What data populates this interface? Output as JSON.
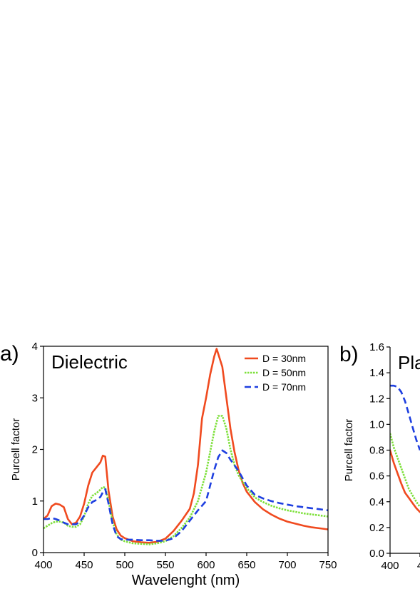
{
  "chart_data": [
    {
      "panel": "a)",
      "type": "line",
      "title": "Dielectric",
      "xlabel": "Wavelenght (nm)",
      "ylabel": "Purcell factor",
      "xlim": [
        400,
        750
      ],
      "ylim": [
        0,
        4
      ],
      "xticks": [
        "400",
        "450",
        "500",
        "550",
        "600",
        "650",
        "700",
        "750"
      ],
      "yticks": [
        "0",
        "1",
        "2",
        "3",
        "4"
      ],
      "legend_position": "top-right",
      "series": [
        {
          "name": "D = 30nm",
          "color": "#f04a1f",
          "dash": "solid",
          "x": [
            400,
            405,
            410,
            415,
            420,
            425,
            430,
            435,
            440,
            445,
            450,
            455,
            460,
            465,
            470,
            473,
            476,
            480,
            485,
            490,
            495,
            500,
            510,
            520,
            530,
            540,
            550,
            560,
            570,
            580,
            585,
            590,
            595,
            600,
            605,
            610,
            613,
            615,
            620,
            625,
            630,
            635,
            640,
            645,
            650,
            660,
            670,
            680,
            690,
            700,
            710,
            720,
            730,
            740,
            750
          ],
          "y": [
            0.65,
            0.72,
            0.9,
            0.95,
            0.93,
            0.88,
            0.65,
            0.55,
            0.58,
            0.7,
            0.95,
            1.3,
            1.55,
            1.65,
            1.75,
            1.88,
            1.86,
            1.2,
            0.7,
            0.45,
            0.33,
            0.28,
            0.22,
            0.2,
            0.19,
            0.21,
            0.27,
            0.42,
            0.62,
            0.85,
            1.15,
            1.7,
            2.6,
            3.0,
            3.45,
            3.8,
            3.95,
            3.85,
            3.6,
            3.0,
            2.4,
            1.95,
            1.6,
            1.35,
            1.18,
            0.98,
            0.84,
            0.74,
            0.66,
            0.6,
            0.56,
            0.52,
            0.49,
            0.47,
            0.45
          ]
        },
        {
          "name": "D = 50nm",
          "color": "#7de03a",
          "dash": "dotted",
          "x": [
            400,
            405,
            410,
            415,
            420,
            425,
            430,
            435,
            440,
            445,
            450,
            455,
            460,
            465,
            470,
            473,
            476,
            480,
            485,
            490,
            495,
            500,
            510,
            520,
            530,
            540,
            550,
            560,
            570,
            580,
            590,
            600,
            605,
            610,
            615,
            620,
            625,
            630,
            635,
            640,
            650,
            660,
            670,
            680,
            690,
            700,
            710,
            720,
            730,
            740,
            750
          ],
          "y": [
            0.47,
            0.52,
            0.57,
            0.6,
            0.6,
            0.58,
            0.52,
            0.5,
            0.5,
            0.55,
            0.7,
            0.95,
            1.1,
            1.15,
            1.22,
            1.27,
            1.26,
            1.0,
            0.6,
            0.35,
            0.25,
            0.22,
            0.18,
            0.17,
            0.16,
            0.18,
            0.22,
            0.32,
            0.48,
            0.68,
            1.0,
            1.55,
            1.95,
            2.35,
            2.65,
            2.65,
            2.4,
            2.0,
            1.7,
            1.5,
            1.25,
            1.07,
            0.98,
            0.91,
            0.86,
            0.82,
            0.79,
            0.76,
            0.74,
            0.72,
            0.7
          ]
        },
        {
          "name": "D = 70nm",
          "color": "#1e3fe0",
          "dash": "dashed",
          "x": [
            400,
            405,
            410,
            415,
            420,
            425,
            430,
            435,
            440,
            445,
            450,
            455,
            460,
            465,
            470,
            473,
            476,
            480,
            485,
            490,
            495,
            500,
            510,
            520,
            530,
            540,
            550,
            560,
            570,
            580,
            590,
            600,
            605,
            610,
            615,
            620,
            625,
            630,
            640,
            650,
            660,
            670,
            680,
            690,
            700,
            710,
            720,
            730,
            740,
            750
          ],
          "y": [
            0.65,
            0.65,
            0.67,
            0.65,
            0.62,
            0.58,
            0.55,
            0.55,
            0.55,
            0.6,
            0.72,
            0.88,
            0.98,
            1.02,
            1.08,
            1.17,
            1.23,
            0.95,
            0.55,
            0.32,
            0.26,
            0.25,
            0.25,
            0.24,
            0.24,
            0.23,
            0.23,
            0.28,
            0.42,
            0.62,
            0.82,
            1.0,
            1.3,
            1.6,
            1.85,
            1.98,
            1.93,
            1.8,
            1.58,
            1.3,
            1.12,
            1.05,
            1.0,
            0.96,
            0.93,
            0.9,
            0.88,
            0.86,
            0.84,
            0.82
          ]
        }
      ]
    },
    {
      "panel": "b)",
      "type": "line",
      "title": "Pla",
      "xlabel": "",
      "ylabel": "Purcell factor",
      "xlim": [
        400,
        440
      ],
      "ylim": [
        0,
        1.6
      ],
      "xticks": [
        "400",
        "4"
      ],
      "yticks": [
        "0.0",
        "0.2",
        "0.4",
        "0.6",
        "0.8",
        "1.0",
        "1.2",
        "1.4",
        "1.6"
      ],
      "series": [
        {
          "color": "#f04a1f",
          "dash": "solid",
          "x": [
            400,
            405,
            410,
            415,
            420,
            425,
            430,
            435,
            440
          ],
          "y": [
            0.8,
            0.7,
            0.62,
            0.54,
            0.47,
            0.43,
            0.39,
            0.35,
            0.32
          ]
        },
        {
          "color": "#7de03a",
          "dash": "dotted",
          "x": [
            400,
            405,
            410,
            415,
            420,
            425,
            430,
            435,
            440
          ],
          "y": [
            0.93,
            0.82,
            0.74,
            0.66,
            0.58,
            0.5,
            0.45,
            0.4,
            0.36
          ]
        },
        {
          "color": "#1e3fe0",
          "dash": "dashed",
          "x": [
            400,
            405,
            410,
            415,
            420,
            425,
            430,
            435,
            440
          ],
          "y": [
            1.3,
            1.3,
            1.29,
            1.25,
            1.18,
            1.08,
            0.98,
            0.88,
            0.8
          ]
        }
      ]
    }
  ]
}
